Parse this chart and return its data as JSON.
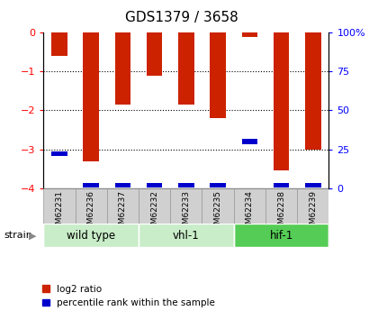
{
  "title": "GDS1379 / 3658",
  "samples": [
    "GSM62231",
    "GSM62236",
    "GSM62237",
    "GSM62232",
    "GSM62233",
    "GSM62235",
    "GSM62234",
    "GSM62238",
    "GSM62239"
  ],
  "log2_ratio": [
    -0.6,
    -3.3,
    -1.85,
    -1.1,
    -1.85,
    -2.2,
    -0.1,
    -3.55,
    -3.0
  ],
  "percentile_rank": [
    22,
    2,
    2,
    2,
    2,
    2,
    30,
    2,
    2
  ],
  "groups": [
    {
      "label": "wild type",
      "start": 0,
      "end": 3,
      "color": "#c8edc8"
    },
    {
      "label": "vhl-1",
      "start": 3,
      "end": 6,
      "color": "#c8edc8"
    },
    {
      "label": "hif-1",
      "start": 6,
      "end": 9,
      "color": "#55cc55"
    }
  ],
  "ylim_left": [
    -4.0,
    0.0
  ],
  "ylim_right": [
    0,
    100
  ],
  "y_ticks_left": [
    0,
    -1,
    -2,
    -3,
    -4
  ],
  "y_ticks_right": [
    0,
    25,
    50,
    75,
    100
  ],
  "bar_color_red": "#cc2200",
  "bar_color_blue": "#0000cc",
  "bar_width": 0.5,
  "legend_red": "log2 ratio",
  "legend_blue": "percentile rank within the sample",
  "grid_lines": [
    -1,
    -2,
    -3
  ],
  "bg_plot": "#ffffff",
  "sample_box_color": "#d0d0d0",
  "sample_box_edge": "#999999"
}
